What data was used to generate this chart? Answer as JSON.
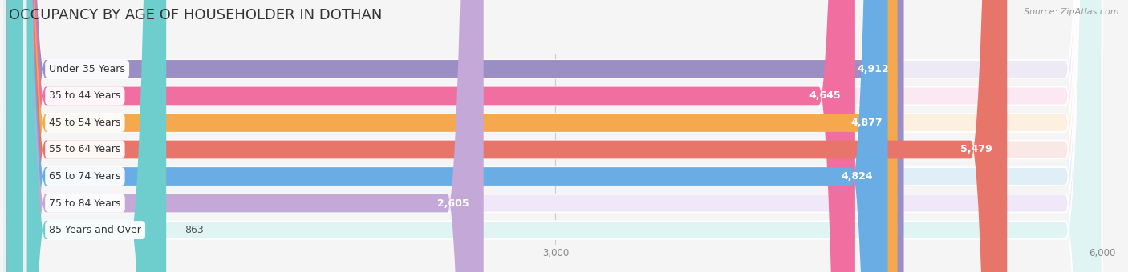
{
  "title": "OCCUPANCY BY AGE OF HOUSEHOLDER IN DOTHAN",
  "source": "Source: ZipAtlas.com",
  "categories": [
    "Under 35 Years",
    "35 to 44 Years",
    "45 to 54 Years",
    "55 to 64 Years",
    "65 to 74 Years",
    "75 to 84 Years",
    "85 Years and Over"
  ],
  "values": [
    4912,
    4645,
    4877,
    5479,
    4824,
    2605,
    863
  ],
  "bar_colors": [
    "#9b8ec4",
    "#f06fa0",
    "#f5a84e",
    "#e8756a",
    "#6aade4",
    "#c4a8d8",
    "#6ecece"
  ],
  "bar_bg_colors": [
    "#edeaf5",
    "#fce8f2",
    "#fdf0e0",
    "#fae8e6",
    "#e0eef8",
    "#f0e8f8",
    "#e0f4f4"
  ],
  "xlim": [
    0,
    6000
  ],
  "xticks": [
    0,
    3000,
    6000
  ],
  "title_fontsize": 13,
  "label_fontsize": 9,
  "value_fontsize": 9,
  "source_fontsize": 8,
  "bar_height": 0.68,
  "background_color": "#f5f5f5"
}
